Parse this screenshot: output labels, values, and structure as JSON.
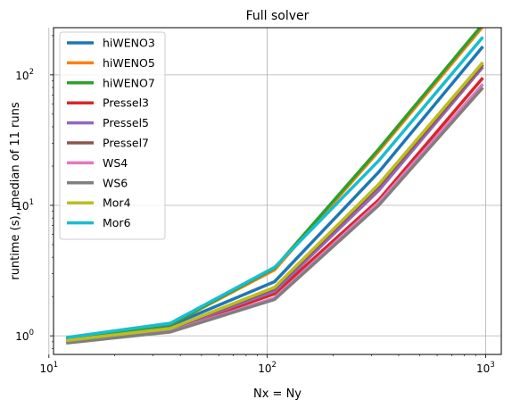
{
  "chart_data": {
    "type": "line",
    "title": "Full solver",
    "xlabel": "Nx = Ny",
    "ylabel": "runtime (s), median of 11 runs",
    "xscale": "log",
    "yscale": "log",
    "xlim": [
      10.5,
      1180
    ],
    "ylim": [
      0.72,
      230
    ],
    "grid": true,
    "legend_position": "top-left",
    "x_ticks": [
      {
        "value": 10,
        "base": "10",
        "exp": "1"
      },
      {
        "value": 100,
        "base": "10",
        "exp": "2"
      },
      {
        "value": 1000,
        "base": "10",
        "exp": "3"
      }
    ],
    "y_ticks": [
      {
        "value": 1,
        "base": "10",
        "exp": "0"
      },
      {
        "value": 10,
        "base": "10",
        "exp": "1"
      },
      {
        "value": 100,
        "base": "10",
        "exp": "2"
      }
    ],
    "x": [
      12,
      36,
      108,
      324,
      972
    ],
    "series": [
      {
        "name": "hiWENO3",
        "color": "#1f77b4",
        "values": [
          0.95,
          1.2,
          2.6,
          18.0,
          165
        ]
      },
      {
        "name": "hiWENO5",
        "color": "#ff7f0e",
        "values": [
          0.95,
          1.22,
          3.2,
          26.0,
          235
        ]
      },
      {
        "name": "hiWENO7",
        "color": "#2ca02c",
        "values": [
          0.95,
          1.22,
          3.3,
          27.0,
          245
        ]
      },
      {
        "name": "Pressel3",
        "color": "#d62728",
        "values": [
          0.9,
          1.1,
          2.1,
          11.0,
          95
        ]
      },
      {
        "name": "Pressel5",
        "color": "#9467bd",
        "values": [
          0.9,
          1.12,
          2.2,
          13.0,
          115
        ]
      },
      {
        "name": "Pressel7",
        "color": "#8c564b",
        "values": [
          0.92,
          1.13,
          2.3,
          14.0,
          120
        ]
      },
      {
        "name": "WS4",
        "color": "#e377c2",
        "values": [
          0.9,
          1.08,
          1.95,
          10.5,
          85
        ]
      },
      {
        "name": "WS6",
        "color": "#7f7f7f",
        "values": [
          0.88,
          1.07,
          1.9,
          10.0,
          80
        ]
      },
      {
        "name": "Mor4",
        "color": "#bcbd22",
        "values": [
          0.92,
          1.14,
          2.35,
          14.5,
          125
        ]
      },
      {
        "name": "Mor6",
        "color": "#17becf",
        "values": [
          0.97,
          1.25,
          3.35,
          22.0,
          195
        ]
      }
    ]
  }
}
